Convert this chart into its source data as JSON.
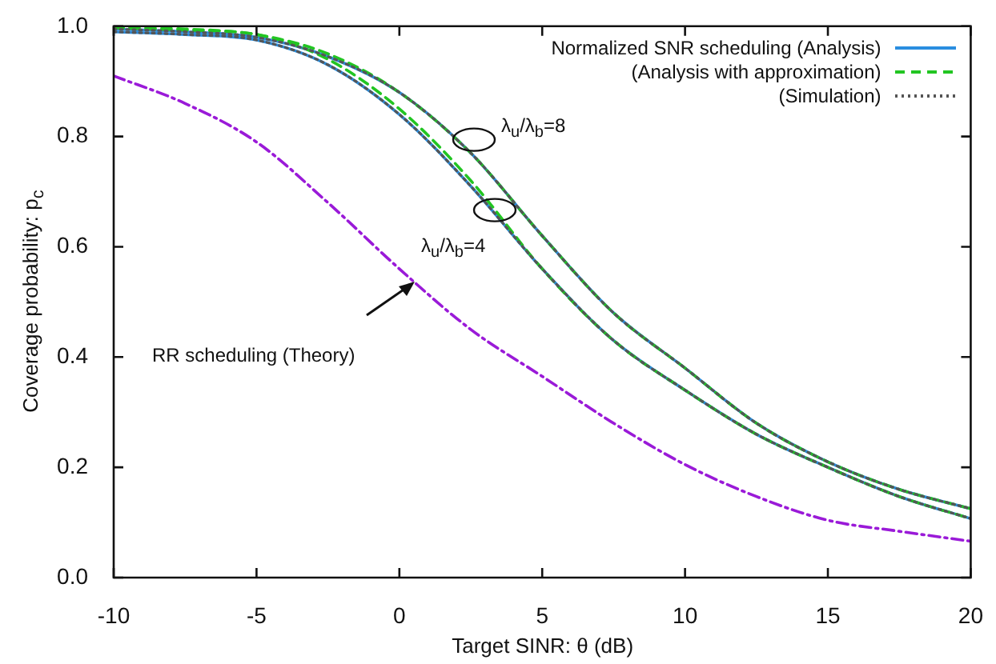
{
  "chart_data": {
    "type": "line",
    "xlabel": "Target SINR: θ (dB)",
    "ylabel": "Coverage probability: p$_{c}$",
    "x": [
      -10,
      -7.5,
      -5,
      -2.5,
      0,
      2.5,
      5,
      7.5,
      10,
      12.5,
      15,
      17.5,
      20
    ],
    "xlim": [
      -10,
      20
    ],
    "xticks": [
      -10,
      -5,
      0,
      5,
      10,
      15,
      20
    ],
    "ylim": [
      0,
      1
    ],
    "yticks": [
      {
        "value": 0,
        "label": "0.0"
      },
      0.2,
      0.4,
      0.6,
      0.8,
      {
        "value": 1,
        "label": "1.0"
      }
    ],
    "grid": false,
    "legend": "top right",
    "marker": "none",
    "series": [
      {
        "name": "Normalized SNR scheduling (Analysis)",
        "color": "#2a8ee0",
        "line_style": "solid",
        "values": [
          0.995,
          0.99,
          0.98,
          0.945,
          0.88,
          0.77,
          0.62,
          0.48,
          0.38,
          0.28,
          0.21,
          0.16,
          0.125
        ]
      },
      {
        "name": "(Analysis with approximation)",
        "color": "#22c522",
        "line_style": "dashed",
        "values": [
          0.998,
          0.995,
          0.985,
          0.95,
          0.88,
          0.77,
          0.62,
          0.48,
          0.38,
          0.28,
          0.21,
          0.16,
          0.125
        ]
      },
      {
        "name": "(Simulation)",
        "color": "#555555",
        "line_style": "dotted",
        "values": [
          0.995,
          0.99,
          0.98,
          0.945,
          0.88,
          0.77,
          0.62,
          0.48,
          0.38,
          0.28,
          0.21,
          0.16,
          0.125
        ]
      },
      {
        "color": "#2a8ee0",
        "line_style": "solid",
        "values": [
          0.99,
          0.985,
          0.975,
          0.93,
          0.84,
          0.71,
          0.56,
          0.43,
          0.34,
          0.26,
          0.2,
          0.147,
          0.107
        ]
      },
      {
        "color": "#22c522",
        "line_style": "dashed",
        "values": [
          0.997,
          0.993,
          0.985,
          0.94,
          0.85,
          0.72,
          0.56,
          0.43,
          0.34,
          0.26,
          0.2,
          0.147,
          0.107
        ]
      },
      {
        "color": "#555555",
        "line_style": "dotted",
        "values": [
          0.99,
          0.985,
          0.975,
          0.93,
          0.84,
          0.71,
          0.56,
          0.43,
          0.34,
          0.26,
          0.2,
          0.147,
          0.107
        ]
      },
      {
        "color": "#9a1ad8",
        "line_style": "dashdot",
        "values": [
          0.91,
          0.86,
          0.79,
          0.68,
          0.56,
          0.45,
          0.365,
          0.28,
          0.205,
          0.147,
          0.104,
          0.084,
          0.066
        ]
      }
    ],
    "annotations": [
      "λ$_{u}$/λ$_{b}$=8",
      "λ$_{u}$/λ$_{b}$=4",
      "RR scheduling (Theory)"
    ]
  }
}
